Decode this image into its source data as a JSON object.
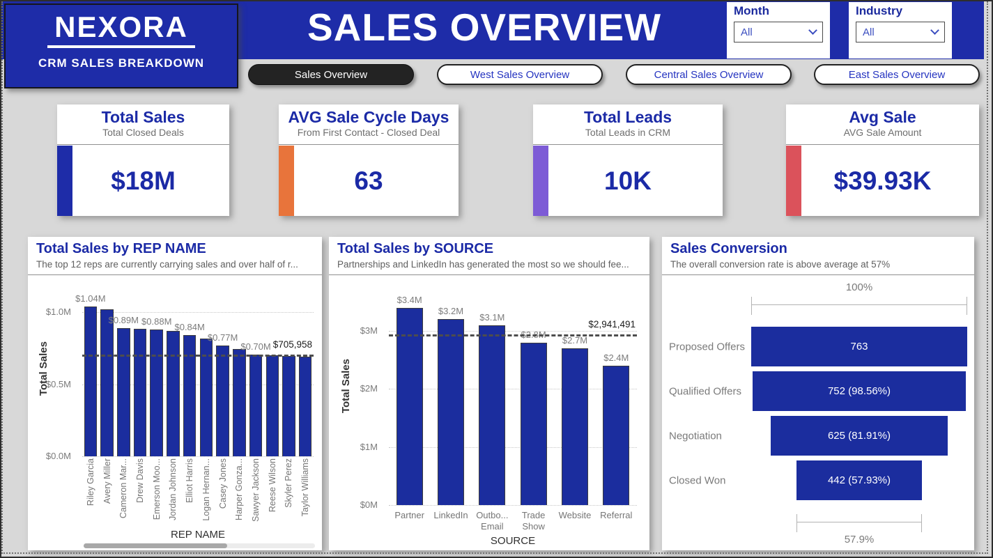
{
  "header": {
    "logo": {
      "title": "NEXORA",
      "subtitle": "CRM SALES BREAKDOWN"
    },
    "title": "SALES OVERVIEW",
    "slicers": [
      {
        "label": "Month",
        "value": "All"
      },
      {
        "label": "Industry",
        "value": "All"
      }
    ]
  },
  "tabs": [
    {
      "label": "Sales Overview",
      "active": true
    },
    {
      "label": "West Sales Overview",
      "active": false
    },
    {
      "label": "Central Sales Overview",
      "active": false
    },
    {
      "label": "East Sales Overview",
      "active": false
    }
  ],
  "kpis": [
    {
      "title": "Total Sales",
      "subtitle": "Total Closed Deals",
      "value": "$18M",
      "accent": "#1e2ca8"
    },
    {
      "title": "AVG Sale Cycle Days",
      "subtitle": "From First Contact - Closed Deal",
      "value": "63",
      "accent": "#e8743b"
    },
    {
      "title": "Total Leads",
      "subtitle": "Total Leads in CRM",
      "value": "10K",
      "accent": "#7d5bd6"
    },
    {
      "title": "Avg Sale",
      "subtitle": "AVG Sale Amount",
      "value": "$39.93K",
      "accent": "#db525b"
    }
  ],
  "chart_data": [
    {
      "type": "bar",
      "title": "Total Sales by REP NAME",
      "subtitle": "The top 12 reps are currently carrying sales and over half of r...",
      "xlabel": "REP NAME",
      "ylabel": "Total Sales",
      "categories": [
        "Riley Garcia",
        "Avery Miller",
        "Cameron Mar...",
        "Drew Davis",
        "Emerson Moo...",
        "Jordan Johnson",
        "Elliot Harris",
        "Logan Hernan...",
        "Casey Jones",
        "Harper Gonza...",
        "Sawyer Jackson",
        "Reese Wilson",
        "Skyler Perez",
        "Taylor Williams"
      ],
      "values_m": [
        1.04,
        1.02,
        0.89,
        0.885,
        0.88,
        0.87,
        0.84,
        0.815,
        0.77,
        0.745,
        0.705,
        0.7,
        0.695,
        0.69
      ],
      "bar_labels": [
        "$1.04M",
        "",
        "$0.89M",
        "",
        "$0.88M",
        "",
        "$0.84M",
        "",
        "$0.77M",
        "",
        "$0.70M",
        "",
        "",
        ""
      ],
      "yticks": [
        "$1.0M",
        "$0.5M",
        "$0.0M"
      ],
      "ylim": [
        0,
        1.16
      ],
      "grid": true,
      "avg_line": {
        "value_m": 0.705958,
        "label": "$705,958"
      },
      "has_scrollbar": true
    },
    {
      "type": "bar",
      "title": "Total Sales by SOURCE",
      "subtitle": "Partnerships and LinkedIn has generated the most so we should fee...",
      "xlabel": "SOURCE",
      "ylabel": "Total Sales",
      "categories": [
        "Partner",
        "LinkedIn",
        "Outbo... Email",
        "Trade Show",
        "Website",
        "Referral"
      ],
      "values_m": [
        3.4,
        3.2,
        3.1,
        2.8,
        2.7,
        2.4
      ],
      "bar_labels": [
        "$3.4M",
        "$3.2M",
        "$3.1M",
        "$2.8M",
        "$2.7M",
        "$2.4M"
      ],
      "yticks": [
        "$3M",
        "$2M",
        "$1M",
        "$0M"
      ],
      "ylim": [
        0,
        3.78
      ],
      "grid": true,
      "avg_line": {
        "value_m": 2.941491,
        "label": "$2,941,491"
      }
    },
    {
      "type": "funnel",
      "title": "Sales Conversion",
      "subtitle": "The overall conversion rate is above average at 57%",
      "stages": [
        {
          "label": "Proposed Offers",
          "value": 763,
          "text": "763",
          "pct": 100
        },
        {
          "label": "Qualified Offers",
          "value": 752,
          "text": "752 (98.56%)",
          "pct": 98.56
        },
        {
          "label": "Negotiation",
          "value": 625,
          "text": "625 (81.91%)",
          "pct": 81.91
        },
        {
          "label": "Closed Won",
          "value": 442,
          "text": "442 (57.93%)",
          "pct": 57.93
        }
      ],
      "top_label": "100%",
      "bottom_label": "57.9%"
    }
  ],
  "colors": {
    "brand_blue": "#1e2ca8",
    "bar_blue": "#1b2d9e",
    "active_tab": "#232323",
    "page_bg": "#d8d8d8",
    "accent_orange": "#e8743b",
    "accent_purple": "#7d5bd6",
    "accent_red": "#db525b"
  }
}
